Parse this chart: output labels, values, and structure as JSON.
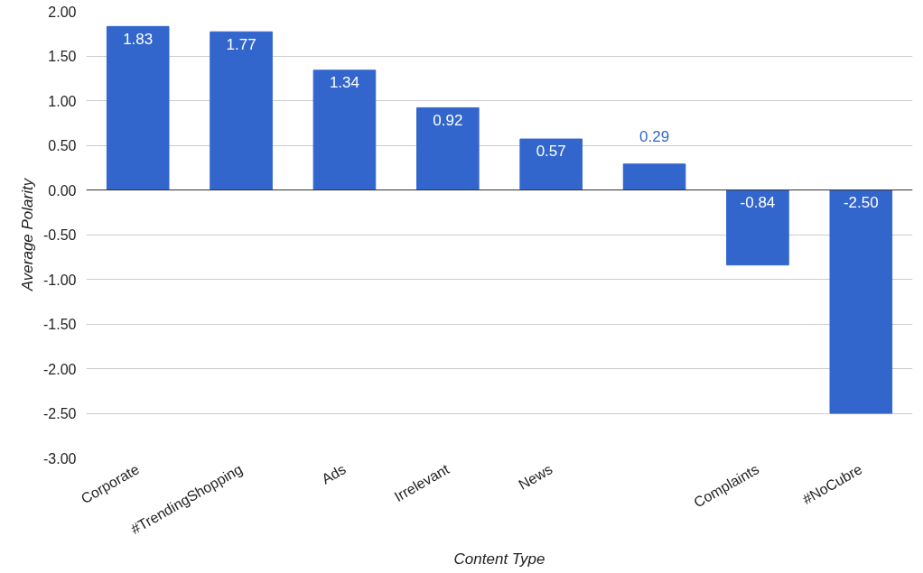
{
  "chart_data": {
    "type": "bar",
    "xlabel": "Content Type",
    "ylabel": "Average Polarity",
    "categories": [
      "Corporate",
      "#TrendingShopping",
      "Ads",
      "Irrelevant",
      "News",
      null,
      "Complaints",
      "#NoCubre"
    ],
    "values": [
      1.83,
      1.77,
      1.34,
      0.92,
      0.57,
      0.29,
      -0.84,
      -2.5
    ],
    "value_labels": [
      "1.83",
      "1.77",
      "1.34",
      "0.92",
      "0.57",
      "0.29",
      "-0.84",
      "-2.50"
    ],
    "color": "#3366cc",
    "ylim": [
      -3.0,
      2.0
    ],
    "yticks": [
      {
        "value": -3.0,
        "label": "-3.00"
      },
      {
        "value": -2.5,
        "label": "-2.50"
      },
      {
        "value": -2.0,
        "label": "-2.00"
      },
      {
        "value": -1.5,
        "label": "-1.50"
      },
      {
        "value": -1.0,
        "label": "-1.00"
      },
      {
        "value": -0.5,
        "label": "-0.50"
      },
      {
        "value": 0.0,
        "label": "0.00"
      },
      {
        "value": 0.5,
        "label": "0.50"
      },
      {
        "value": 1.0,
        "label": "1.00"
      },
      {
        "value": 1.5,
        "label": "1.50"
      },
      {
        "value": 2.0,
        "label": "2.00"
      }
    ],
    "grid": "y"
  }
}
